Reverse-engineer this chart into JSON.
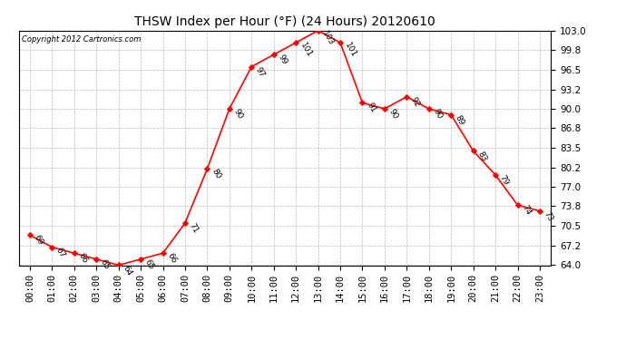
{
  "title": "THSW Index per Hour (°F) (24 Hours) 20120610",
  "copyright": "Copyright 2012 Cartronics.com",
  "hours": [
    "00:00",
    "01:00",
    "02:00",
    "03:00",
    "04:00",
    "05:00",
    "06:00",
    "07:00",
    "08:00",
    "09:00",
    "10:00",
    "11:00",
    "12:00",
    "13:00",
    "14:00",
    "15:00",
    "16:00",
    "17:00",
    "18:00",
    "19:00",
    "20:00",
    "21:00",
    "22:00",
    "23:00"
  ],
  "values": [
    69,
    67,
    66,
    65,
    64,
    65,
    66,
    71,
    80,
    90,
    97,
    99,
    101,
    103,
    101,
    91,
    90,
    92,
    90,
    89,
    83,
    79,
    74,
    73
  ],
  "yticks": [
    64.0,
    67.2,
    70.5,
    73.8,
    77.0,
    80.2,
    83.5,
    86.8,
    90.0,
    93.2,
    96.5,
    99.8,
    103.0
  ],
  "ylim": [
    64.0,
    103.0
  ],
  "line_color": "red",
  "marker_color": "red",
  "bg_color": "white",
  "grid_color": "#bbbbbb",
  "title_fontsize": 10,
  "tick_fontsize": 7.5,
  "label_fontsize": 6.5
}
